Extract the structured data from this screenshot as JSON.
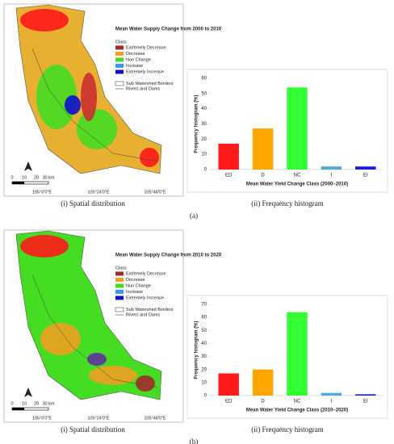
{
  "chart_data": [
    {
      "type": "bar",
      "caption": "(ii) Frequency histogram",
      "ylabel": "Frequency histogram (%)",
      "xlabel": "Mean Water Yield Change Class (2000–2010)",
      "categories": [
        "ED",
        "D",
        "NC",
        "I",
        "EI"
      ],
      "values": [
        17,
        27,
        54,
        2,
        2
      ],
      "colors": [
        "#ff1a1a",
        "#ffa500",
        "#33ff33",
        "#4fa8e0",
        "#1a1ae0"
      ],
      "ylim": [
        0,
        60
      ],
      "yticks": [
        0,
        10,
        20,
        30,
        40,
        50,
        60
      ],
      "grid": false
    },
    {
      "type": "bar",
      "caption": "(ii) Frequency histogram",
      "ylabel": "Frequency histogram (%)",
      "xlabel": "Mean Water Yield Change Class (2010–2020)",
      "categories": [
        "ED",
        "D",
        "NC",
        "I",
        "EI"
      ],
      "values": [
        17,
        20,
        64,
        2,
        1
      ],
      "colors": [
        "#ff1a1a",
        "#ffa500",
        "#33ff33",
        "#4fa8e0",
        "#1a1ae0"
      ],
      "ylim": [
        0,
        70
      ],
      "yticks": [
        0,
        10,
        20,
        30,
        40,
        50,
        60,
        70
      ],
      "grid": false
    }
  ],
  "maps": [
    {
      "caption": "(i) Spatial distribution",
      "legend_title": "Mean Water Supply Change from 2000 to 2010",
      "class_title": "Class",
      "classes": [
        {
          "name": "Extremely Decrease",
          "color": "#a52a2a"
        },
        {
          "name": "Decrease",
          "color": "#f0a020"
        },
        {
          "name": "Non Change",
          "color": "#44dd22"
        },
        {
          "name": "Increase",
          "color": "#3399ff"
        },
        {
          "name": "Extremely Increase",
          "color": "#1010cc"
        }
      ],
      "borders": "Sub Watershed Borders",
      "rivers": "Rivers and Dams",
      "scale": [
        "0",
        "10",
        "20",
        "30 km"
      ],
      "longitudes": [
        "105°0'0\"E",
        "105°24'0\"E",
        "105°48'0\"E"
      ]
    },
    {
      "caption": "(i) Spatial distribution",
      "legend_title": "Mean Water Supply Change from 2010 to 2020",
      "class_title": "Class",
      "classes": [
        {
          "name": "Extremely Decrease",
          "color": "#a52a2a"
        },
        {
          "name": "Decrease",
          "color": "#f0a020"
        },
        {
          "name": "Nun Change",
          "color": "#44dd22"
        },
        {
          "name": "Increase",
          "color": "#3399ff"
        },
        {
          "name": "Extremely Increase",
          "color": "#1010cc"
        }
      ],
      "borders": "Sub Watershed Borders",
      "rivers": "Rivers and Dams",
      "scale": [
        "0",
        "10",
        "20",
        "30 km"
      ],
      "longitudes": [
        "105°0'0\"E",
        "105°24'0\"E",
        "105°48'0\"E"
      ]
    }
  ],
  "panel_labels": [
    "(a)",
    "(b)"
  ]
}
